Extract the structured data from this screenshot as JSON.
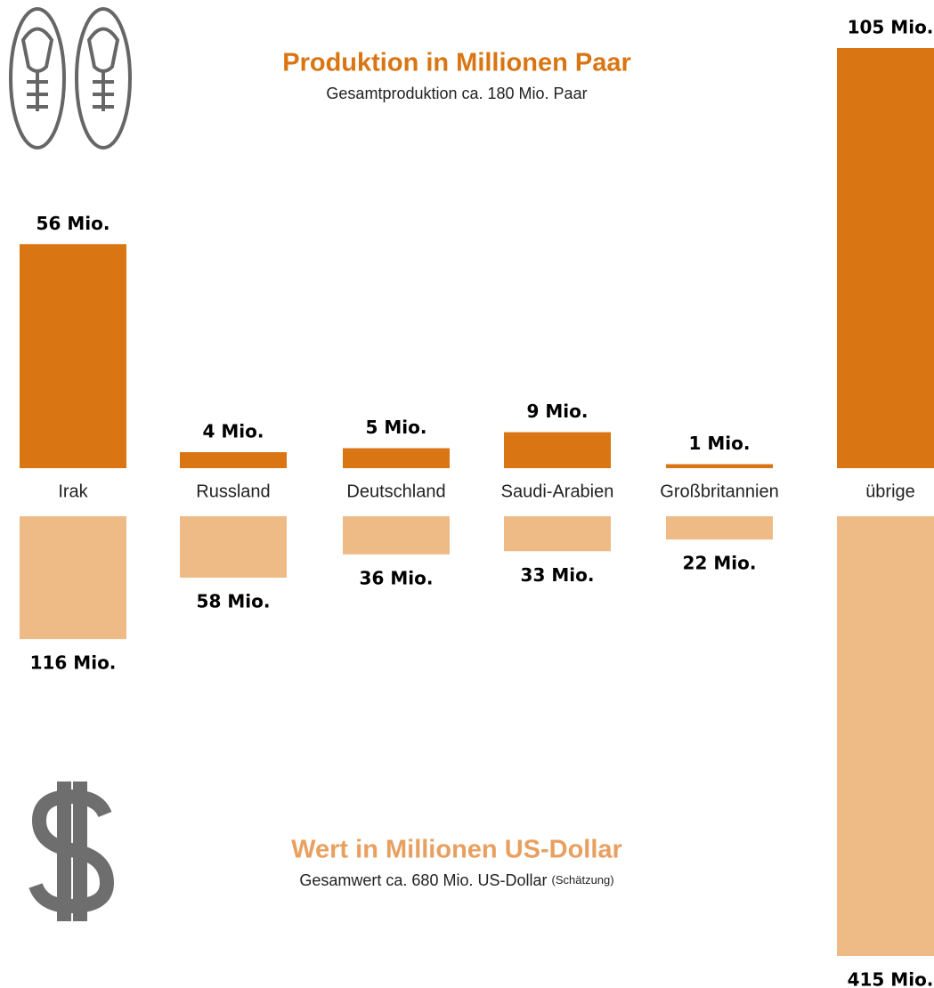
{
  "chart_data": {
    "type": "bar",
    "categories": [
      "Irak",
      "Russland",
      "Deutschland",
      "Saudi-Arabien",
      "Großbritannien",
      "übrige"
    ],
    "series": [
      {
        "name": "Produktion in Millionen Paar",
        "subtitle": "Gesamtproduktion ca. 180 Mio. Paar",
        "color": "#d97512",
        "values": [
          56,
          4,
          5,
          9,
          1,
          105
        ],
        "value_labels": [
          "56 Mio.",
          "4 Mio.",
          "5 Mio.",
          "9 Mio.",
          "1 Mio.",
          "105 Mio."
        ]
      },
      {
        "name": "Wert in Millionen US-Dollar",
        "subtitle": "Gesamwert ca. 680 Mio. US-Dollar",
        "subtitle_note": "(Schätzung)",
        "color": "#eebb87",
        "values": [
          116,
          58,
          36,
          33,
          22,
          415
        ],
        "value_labels": [
          "116 Mio.",
          "58 Mio.",
          "36 Mio.",
          "33 Mio.",
          "22 Mio.",
          "415 Mio."
        ]
      }
    ]
  }
}
